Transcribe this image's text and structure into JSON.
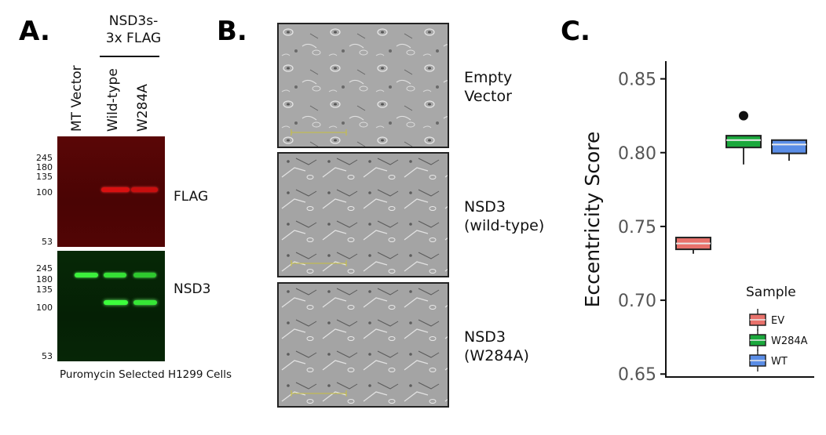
{
  "panels": {
    "a": {
      "letter": "A.",
      "group_label_line1": "NSD3s-",
      "group_label_line2": "3x FLAG",
      "lanes": [
        "MT Vector",
        "Wild-type",
        "W284A"
      ],
      "markers": [
        "245",
        "180",
        "135",
        "100",
        "53"
      ],
      "blot_labels": [
        "FLAG",
        "NSD3"
      ],
      "caption": "Puromycin Selected H1299 Cells",
      "colors": {
        "flag_blot": "#4d0404",
        "flag_band": "#e01010",
        "nsd3_blot": "#052205",
        "nsd3_band": "#3cff3c"
      }
    },
    "b": {
      "letter": "B.",
      "conditions": [
        {
          "line1": "Empty",
          "line2": "Vector"
        },
        {
          "line1": "NSD3",
          "line2": "(wild-type)"
        },
        {
          "line1": "NSD3",
          "line2": "(W284A)"
        }
      ]
    },
    "c": {
      "letter": "C."
    }
  },
  "chart_data": {
    "type": "box",
    "title": "",
    "xlabel": "",
    "ylabel": "Eccentricity Score",
    "ylim": [
      0.648,
      0.862
    ],
    "yticks": [
      0.65,
      0.7,
      0.75,
      0.8,
      0.85
    ],
    "ytick_labels": [
      "0.65",
      "0.70",
      "0.75",
      "0.80",
      "0.85"
    ],
    "legend": {
      "title": "Sample",
      "position": "bottom-right"
    },
    "series": [
      {
        "name": "EV",
        "color": "#e8716b",
        "whisker_low": 0.7315,
        "q1": 0.7345,
        "median": 0.7385,
        "q3": 0.7425,
        "whisker_high": 0.7425,
        "outliers": []
      },
      {
        "name": "W284A",
        "color": "#1aa83c",
        "whisker_low": 0.792,
        "q1": 0.8035,
        "median": 0.8085,
        "q3": 0.8115,
        "whisker_high": 0.8115,
        "outliers": [
          0.825
        ]
      },
      {
        "name": "WT",
        "color": "#5a8de6",
        "whisker_low": 0.7945,
        "q1": 0.7995,
        "median": 0.8055,
        "q3": 0.8085,
        "whisker_high": 0.8085,
        "outliers": []
      }
    ]
  }
}
